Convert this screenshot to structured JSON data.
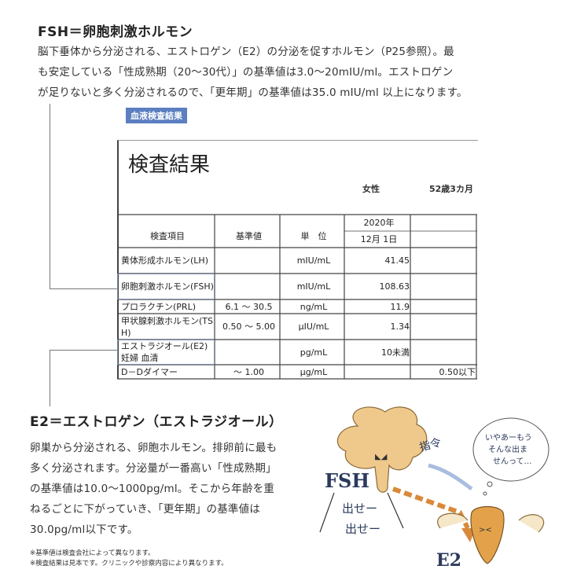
{
  "fsh_section": {
    "title": "FSH＝卵胞刺激ホルモン",
    "lines": [
      "脳下垂体から分泌される、エストロゲン（E2）の分泌を促すホルモン（P25参照）。最",
      "も安定している「性成熟期（20～30代）」の基準値は3.0～20mIU/ml。エストロゲン",
      "が足りないと多く分泌されるので、「更年期」の基準値は35.0 mIU/ml 以上になります。"
    ]
  },
  "badge": "血液検査結果",
  "report": {
    "title": "検査結果",
    "sex": "女性",
    "age": "52歳3カ月",
    "year": "2020年",
    "date": "12月  1日",
    "headers": [
      "検査項目",
      "基準値",
      "単　位"
    ],
    "rows": [
      {
        "item": "黄体形成ホルモン(LH)",
        "ref": "",
        "unit": "mIU/mL",
        "value": "41.45",
        "extra": ""
      },
      {
        "item": "卵胞刺激ホルモン(FSH)",
        "ref": "",
        "unit": "mIU/mL",
        "value": "108.63",
        "extra": ""
      },
      {
        "item": "プロラクチン(PRL)",
        "ref": "6.1 ～ 30.5",
        "unit": "ng/mL",
        "value": "11.9",
        "extra": ""
      },
      {
        "item": "甲状腺刺激ホルモン(TSH)",
        "ref": "0.50 ～ 5.00",
        "unit": "μIU/mL",
        "value": "1.34",
        "extra": ""
      },
      {
        "item": "エストラジオール(E2)妊婦 血清",
        "ref": "",
        "unit": "pg/mL",
        "value": "10未満",
        "extra": ""
      },
      {
        "item": "D－Dダイマー",
        "ref": "～ 1.00",
        "unit": "μg/mL",
        "value": "",
        "extra": "0.50以下"
      }
    ]
  },
  "e2_section": {
    "title": "E2＝エストロゲン（エストラジオール）",
    "lines": [
      "卵巣から分泌される、卵胞ホルモン。排卵前に最も",
      "多く分泌されます。分泌量が一番高い「性成熟期」",
      "の基準値は10.0～1000pg/ml。そこから年齢を重",
      "ねるごとに下がっていき、「更年期」の基準値は",
      "30.0pg/ml以下です。"
    ]
  },
  "footnotes": [
    "※基準値は検査会社によって異なります。",
    "※検査結果は見本です。クリニックや診察内容により異なります。"
  ],
  "illustration": {
    "fsh_label": "FSH",
    "e2_label": "E2",
    "command": "指令",
    "shout": [
      "出せー",
      "出せー"
    ],
    "bubble": [
      "いやあーもう",
      "そんな出ま",
      "せんって…"
    ]
  },
  "colors": {
    "badge": "#5b7fc0",
    "accent_orange": "#d9893a",
    "label_navy": "#2b3a5c"
  }
}
